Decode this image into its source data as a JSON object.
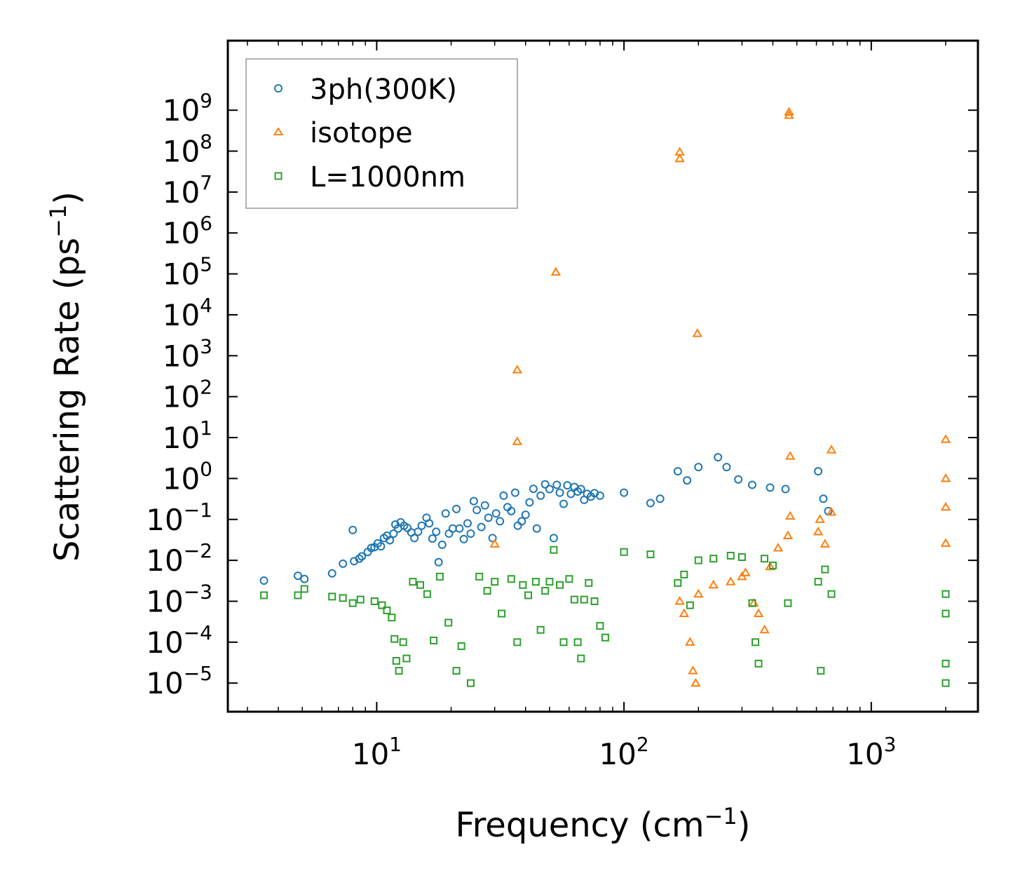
{
  "chart_data": {
    "type": "scatter",
    "xscale": "log",
    "yscale": "log",
    "xlabel": {
      "base": "Frequency (cm",
      "sup": "−1",
      "end": ")"
    },
    "ylabel": {
      "base": "Scattering Rate (ps",
      "sup": "−1",
      "end": ")"
    },
    "xlim": [
      2.5,
      2700
    ],
    "ylim": [
      2e-06,
      50000000000
    ],
    "x_ticks": [
      {
        "base": "10",
        "exp": "1",
        "value": 10
      },
      {
        "base": "10",
        "exp": "2",
        "value": 100
      },
      {
        "base": "10",
        "exp": "3",
        "value": 1000
      }
    ],
    "y_ticks": [
      {
        "base": "10",
        "exp": "−5",
        "value": 1e-05
      },
      {
        "base": "10",
        "exp": "−4",
        "value": 0.0001
      },
      {
        "base": "10",
        "exp": "−3",
        "value": 0.001
      },
      {
        "base": "10",
        "exp": "−2",
        "value": 0.01
      },
      {
        "base": "10",
        "exp": "−1",
        "value": 0.1
      },
      {
        "base": "10",
        "exp": "0",
        "value": 1
      },
      {
        "base": "10",
        "exp": "1",
        "value": 10
      },
      {
        "base": "10",
        "exp": "2",
        "value": 100
      },
      {
        "base": "10",
        "exp": "3",
        "value": 1000
      },
      {
        "base": "10",
        "exp": "4",
        "value": 10000
      },
      {
        "base": "10",
        "exp": "5",
        "value": 100000
      },
      {
        "base": "10",
        "exp": "6",
        "value": 1000000
      },
      {
        "base": "10",
        "exp": "7",
        "value": 10000000
      },
      {
        "base": "10",
        "exp": "8",
        "value": 100000000
      },
      {
        "base": "10",
        "exp": "9",
        "value": 1000000000
      }
    ],
    "legend_position": "top-left",
    "series": [
      {
        "name": "3ph(300K)",
        "marker": "circle",
        "color": "#1f77b4",
        "points": [
          [
            3.5,
            0.0032
          ],
          [
            4.8,
            0.0042
          ],
          [
            5.1,
            0.0035
          ],
          [
            6.6,
            0.0048
          ],
          [
            7.3,
            0.0083
          ],
          [
            8.1,
            0.0095
          ],
          [
            8.5,
            0.011
          ],
          [
            8.7,
            0.0125
          ],
          [
            8.0,
            0.055
          ],
          [
            9.2,
            0.016
          ],
          [
            9.5,
            0.02
          ],
          [
            9.8,
            0.021
          ],
          [
            10.1,
            0.026
          ],
          [
            10.4,
            0.022
          ],
          [
            10.7,
            0.035
          ],
          [
            11.0,
            0.04
          ],
          [
            11.3,
            0.031
          ],
          [
            11.7,
            0.045
          ],
          [
            11.9,
            0.075
          ],
          [
            12.2,
            0.06
          ],
          [
            12.5,
            0.085
          ],
          [
            12.9,
            0.07
          ],
          [
            13.3,
            0.062
          ],
          [
            13.8,
            0.048
          ],
          [
            14.2,
            0.035
          ],
          [
            14.7,
            0.05
          ],
          [
            15.2,
            0.07
          ],
          [
            15.9,
            0.11
          ],
          [
            16.3,
            0.08
          ],
          [
            16.8,
            0.034
          ],
          [
            17.4,
            0.05
          ],
          [
            17.8,
            0.009
          ],
          [
            18.4,
            0.024
          ],
          [
            19.0,
            0.14
          ],
          [
            19.6,
            0.045
          ],
          [
            20.3,
            0.06
          ],
          [
            21.0,
            0.18
          ],
          [
            21.6,
            0.06
          ],
          [
            22.5,
            0.033
          ],
          [
            23.3,
            0.08
          ],
          [
            24.0,
            0.045
          ],
          [
            24.7,
            0.28
          ],
          [
            25.4,
            0.17
          ],
          [
            26.5,
            0.065
          ],
          [
            27.4,
            0.22
          ],
          [
            28.3,
            0.11
          ],
          [
            29.4,
            0.035
          ],
          [
            30.4,
            0.14
          ],
          [
            31.5,
            0.09
          ],
          [
            32.6,
            0.38
          ],
          [
            33.8,
            0.2
          ],
          [
            35.0,
            0.16
          ],
          [
            36.3,
            0.45
          ],
          [
            37.2,
            0.07
          ],
          [
            38.6,
            0.09
          ],
          [
            40.0,
            0.13
          ],
          [
            41.5,
            0.26
          ],
          [
            43.0,
            0.56
          ],
          [
            44.4,
            0.06
          ],
          [
            46.0,
            0.38
          ],
          [
            48.0,
            0.72
          ],
          [
            50.0,
            0.55
          ],
          [
            52.0,
            0.035
          ],
          [
            53.5,
            0.7
          ],
          [
            55.0,
            0.45
          ],
          [
            57.0,
            0.24
          ],
          [
            59.0,
            0.68
          ],
          [
            61.0,
            0.42
          ],
          [
            63.0,
            0.62
          ],
          [
            65.0,
            0.48
          ],
          [
            67.0,
            0.55
          ],
          [
            69.0,
            0.3
          ],
          [
            71.0,
            0.42
          ],
          [
            73.5,
            0.36
          ],
          [
            76.0,
            0.44
          ],
          [
            80.0,
            0.38
          ],
          [
            100,
            0.45
          ],
          [
            128,
            0.25
          ],
          [
            140,
            0.32
          ],
          [
            165,
            1.5
          ],
          [
            180,
            0.9
          ],
          [
            200,
            1.9
          ],
          [
            240,
            3.3
          ],
          [
            260,
            1.9
          ],
          [
            290,
            0.95
          ],
          [
            330,
            0.7
          ],
          [
            390,
            0.6
          ],
          [
            450,
            0.55
          ],
          [
            610,
            1.5
          ],
          [
            640,
            0.32
          ],
          [
            670,
            0.16
          ]
        ]
      },
      {
        "name": "isotope",
        "marker": "triangle",
        "color": "#ff7f0e",
        "points": [
          [
            30,
            0.025
          ],
          [
            37,
            8
          ],
          [
            37,
            450
          ],
          [
            53,
            110000
          ],
          [
            168,
            95000000
          ],
          [
            168,
            65000000
          ],
          [
            198,
            3500
          ],
          [
            465,
            900000000
          ],
          [
            465,
            750000000
          ],
          [
            168,
            0.001
          ],
          [
            175,
            0.0005
          ],
          [
            185,
            0.0001
          ],
          [
            190,
            2e-05
          ],
          [
            195,
            1e-05
          ],
          [
            200,
            0.0015
          ],
          [
            230,
            0.0025
          ],
          [
            270,
            0.003
          ],
          [
            300,
            0.004
          ],
          [
            310,
            0.005
          ],
          [
            335,
            0.0009
          ],
          [
            350,
            0.0005
          ],
          [
            370,
            0.0002
          ],
          [
            390,
            0.007
          ],
          [
            420,
            0.02
          ],
          [
            460,
            0.04
          ],
          [
            470,
            0.12
          ],
          [
            470,
            3.5
          ],
          [
            610,
            0.05
          ],
          [
            620,
            0.1
          ],
          [
            650,
            0.025
          ],
          [
            690,
            0.15
          ],
          [
            690,
            5
          ],
          [
            2000,
            9
          ],
          [
            2000,
            1
          ],
          [
            2000,
            0.2
          ],
          [
            2000,
            0.026
          ]
        ]
      },
      {
        "name": "L=1000nm",
        "marker": "square",
        "color": "#2ca02c",
        "points": [
          [
            3.5,
            0.0014
          ],
          [
            4.8,
            0.0014
          ],
          [
            5.1,
            0.002
          ],
          [
            6.6,
            0.0013
          ],
          [
            7.3,
            0.0012
          ],
          [
            8.0,
            0.0009
          ],
          [
            8.6,
            0.0011
          ],
          [
            9.8,
            0.001
          ],
          [
            10.5,
            0.0008
          ],
          [
            11.0,
            0.0006
          ],
          [
            11.5,
            0.0004
          ],
          [
            11.8,
            0.00012
          ],
          [
            12.0,
            3.5e-05
          ],
          [
            12.3,
            2e-05
          ],
          [
            12.8,
            0.0001
          ],
          [
            13.2,
            4e-05
          ],
          [
            14.0,
            0.003
          ],
          [
            15.0,
            0.0025
          ],
          [
            16.0,
            0.0015
          ],
          [
            17.0,
            0.00011
          ],
          [
            18.0,
            0.004
          ],
          [
            19.5,
            0.0003
          ],
          [
            21.0,
            2e-05
          ],
          [
            22.0,
            8e-05
          ],
          [
            24.0,
            1e-05
          ],
          [
            26.0,
            0.004
          ],
          [
            28.0,
            0.0018
          ],
          [
            30.0,
            0.003
          ],
          [
            32.0,
            0.0005
          ],
          [
            35.0,
            0.0035
          ],
          [
            37.0,
            0.0001
          ],
          [
            39.0,
            0.0025
          ],
          [
            41.0,
            0.0014
          ],
          [
            44.0,
            0.003
          ],
          [
            46.0,
            0.0002
          ],
          [
            48.0,
            0.0018
          ],
          [
            50.0,
            0.003
          ],
          [
            52.0,
            0.018
          ],
          [
            55.0,
            0.0025
          ],
          [
            57.0,
            0.0001
          ],
          [
            60.0,
            0.0035
          ],
          [
            63.0,
            0.0011
          ],
          [
            65.0,
            0.0001
          ],
          [
            67.0,
            4e-05
          ],
          [
            69.0,
            0.0011
          ],
          [
            72.0,
            0.0028
          ],
          [
            76.0,
            0.001
          ],
          [
            80.0,
            0.00025
          ],
          [
            84.0,
            0.00013
          ],
          [
            100,
            0.016
          ],
          [
            128,
            0.014
          ],
          [
            165,
            0.0028
          ],
          [
            175,
            0.0045
          ],
          [
            185,
            0.0008
          ],
          [
            200,
            0.01
          ],
          [
            230,
            0.011
          ],
          [
            270,
            0.013
          ],
          [
            300,
            0.012
          ],
          [
            330,
            0.0009
          ],
          [
            340,
            0.0001
          ],
          [
            350,
            3e-05
          ],
          [
            370,
            0.011
          ],
          [
            400,
            0.0075
          ],
          [
            460,
            0.0009
          ],
          [
            610,
            0.003
          ],
          [
            625,
            2e-05
          ],
          [
            650,
            0.006
          ],
          [
            690,
            0.0015
          ],
          [
            2000,
            0.0015
          ],
          [
            2000,
            0.0005
          ],
          [
            2000,
            3e-05
          ],
          [
            2000,
            1e-05
          ]
        ]
      }
    ]
  }
}
